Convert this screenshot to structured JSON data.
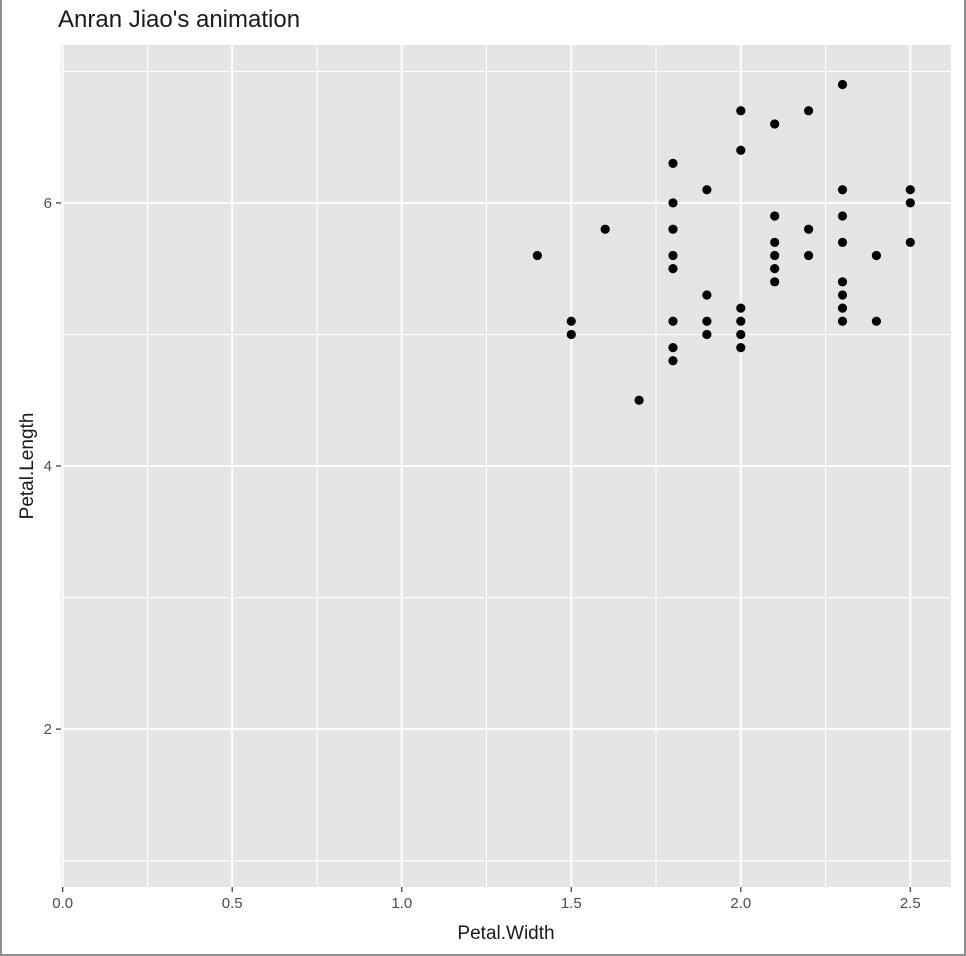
{
  "chart_data": {
    "type": "scatter",
    "title": "Anran Jiao's animation",
    "xlabel": "Petal.Width",
    "ylabel": "Petal.Length",
    "xlim": [
      -0.005,
      2.62
    ],
    "ylim": [
      0.8,
      7.2
    ],
    "x_ticks": [
      0.0,
      0.5,
      1.0,
      1.5,
      2.0,
      2.5
    ],
    "x_tick_labels": [
      "0.0",
      "0.5",
      "1.0",
      "1.5",
      "2.0",
      "2.5"
    ],
    "y_ticks": [
      2,
      4,
      6
    ],
    "y_tick_labels": [
      "2",
      "4",
      "6"
    ],
    "x_minor_ticks": [
      0.25,
      0.75,
      1.25,
      1.75,
      2.25
    ],
    "y_minor_ticks": [
      1,
      3,
      5,
      7
    ],
    "grid": true,
    "colors": {
      "panel_background": "#e5e5e5",
      "grid": "#ffffff",
      "point": "#000000"
    },
    "series": [
      {
        "points": [
          [
            1.4,
            5.6
          ],
          [
            1.5,
            5.1
          ],
          [
            1.5,
            5.0
          ],
          [
            1.6,
            5.8
          ],
          [
            1.7,
            4.5
          ],
          [
            1.8,
            6.3
          ],
          [
            1.8,
            6.0
          ],
          [
            1.8,
            5.8
          ],
          [
            1.8,
            5.6
          ],
          [
            1.8,
            5.5
          ],
          [
            1.8,
            5.1
          ],
          [
            1.8,
            4.9
          ],
          [
            1.8,
            4.8
          ],
          [
            1.9,
            6.1
          ],
          [
            1.9,
            5.3
          ],
          [
            1.9,
            5.1
          ],
          [
            1.9,
            5.0
          ],
          [
            2.0,
            6.7
          ],
          [
            2.0,
            6.4
          ],
          [
            2.0,
            5.2
          ],
          [
            2.0,
            5.1
          ],
          [
            2.0,
            5.0
          ],
          [
            2.0,
            4.9
          ],
          [
            2.1,
            6.6
          ],
          [
            2.1,
            5.9
          ],
          [
            2.1,
            5.7
          ],
          [
            2.1,
            5.6
          ],
          [
            2.1,
            5.5
          ],
          [
            2.1,
            5.4
          ],
          [
            2.2,
            6.7
          ],
          [
            2.2,
            5.8
          ],
          [
            2.2,
            5.6
          ],
          [
            2.3,
            6.9
          ],
          [
            2.3,
            6.1
          ],
          [
            2.3,
            5.9
          ],
          [
            2.3,
            5.7
          ],
          [
            2.3,
            5.4
          ],
          [
            2.3,
            5.3
          ],
          [
            2.3,
            5.2
          ],
          [
            2.3,
            5.1
          ],
          [
            2.4,
            5.6
          ],
          [
            2.4,
            5.1
          ],
          [
            2.5,
            6.1
          ],
          [
            2.5,
            6.0
          ],
          [
            2.5,
            5.7
          ]
        ]
      }
    ]
  }
}
